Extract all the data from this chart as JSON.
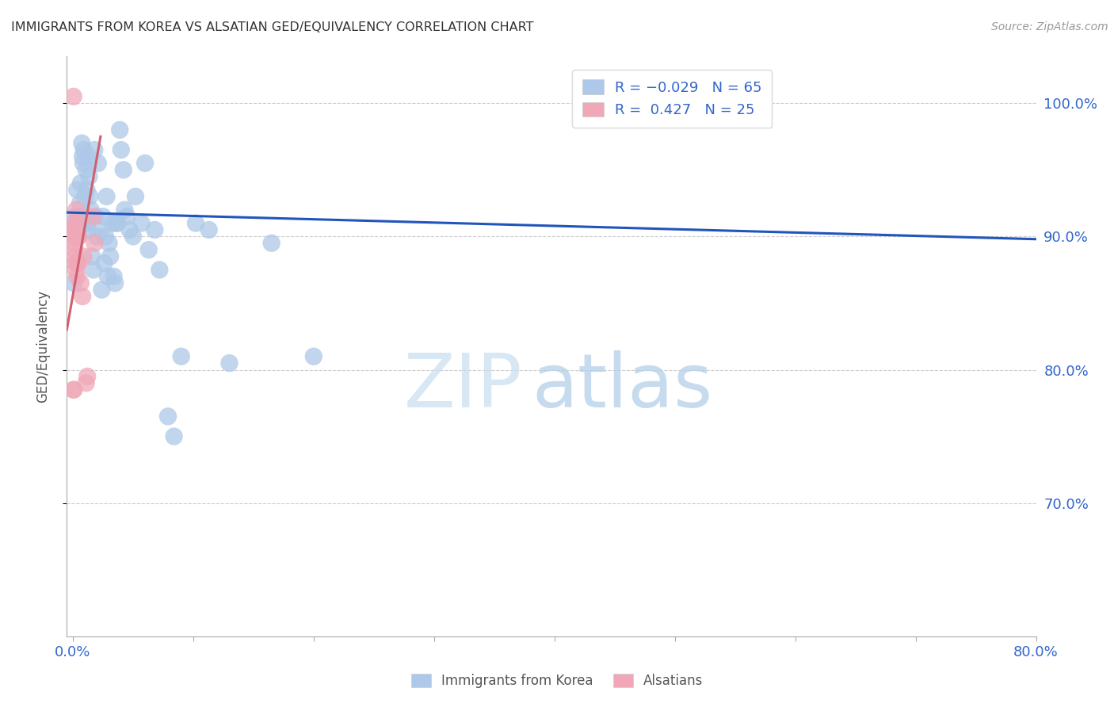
{
  "title": "IMMIGRANTS FROM KOREA VS ALSATIAN GED/EQUIVALENCY CORRELATION CHART",
  "source": "Source: ZipAtlas.com",
  "ylabel": "GED/Equivalency",
  "x_tick_values": [
    0.0,
    10.0,
    20.0,
    30.0,
    40.0,
    50.0,
    60.0,
    70.0,
    80.0
  ],
  "x_label_values": [
    0.0,
    80.0
  ],
  "y_tick_values": [
    70.0,
    80.0,
    90.0,
    100.0
  ],
  "xlim": [
    -0.5,
    80.0
  ],
  "ylim": [
    60.0,
    103.5
  ],
  "blue_color": "#adc8e8",
  "pink_color": "#f0a8b8",
  "blue_line_color": "#2255bb",
  "pink_line_color": "#d06070",
  "blue_scatter": [
    [
      0.18,
      91.5
    ],
    [
      0.22,
      91.0
    ],
    [
      0.3,
      90.5
    ],
    [
      0.35,
      93.5
    ],
    [
      0.4,
      91.0
    ],
    [
      0.45,
      90.0
    ],
    [
      0.5,
      91.5
    ],
    [
      0.6,
      92.5
    ],
    [
      0.65,
      94.0
    ],
    [
      0.75,
      97.0
    ],
    [
      0.8,
      96.0
    ],
    [
      0.85,
      95.5
    ],
    [
      0.9,
      96.5
    ],
    [
      1.0,
      93.0
    ],
    [
      1.05,
      91.0
    ],
    [
      1.1,
      95.0
    ],
    [
      1.15,
      93.5
    ],
    [
      1.2,
      91.0
    ],
    [
      1.25,
      90.5
    ],
    [
      1.3,
      96.0
    ],
    [
      1.35,
      94.5
    ],
    [
      1.4,
      93.0
    ],
    [
      1.5,
      92.0
    ],
    [
      1.6,
      88.5
    ],
    [
      1.7,
      87.5
    ],
    [
      1.8,
      96.5
    ],
    [
      1.9,
      91.5
    ],
    [
      2.0,
      90.0
    ],
    [
      2.1,
      95.5
    ],
    [
      2.3,
      90.5
    ],
    [
      2.4,
      86.0
    ],
    [
      2.5,
      91.5
    ],
    [
      2.6,
      88.0
    ],
    [
      2.7,
      90.0
    ],
    [
      2.8,
      93.0
    ],
    [
      2.9,
      87.0
    ],
    [
      3.0,
      89.5
    ],
    [
      3.1,
      88.5
    ],
    [
      3.3,
      91.0
    ],
    [
      3.4,
      87.0
    ],
    [
      3.5,
      86.5
    ],
    [
      3.6,
      91.0
    ],
    [
      3.7,
      91.0
    ],
    [
      3.9,
      98.0
    ],
    [
      4.0,
      96.5
    ],
    [
      4.2,
      95.0
    ],
    [
      4.3,
      92.0
    ],
    [
      4.5,
      91.5
    ],
    [
      4.7,
      90.5
    ],
    [
      5.0,
      90.0
    ],
    [
      5.2,
      93.0
    ],
    [
      5.7,
      91.0
    ],
    [
      6.0,
      95.5
    ],
    [
      6.3,
      89.0
    ],
    [
      6.8,
      90.5
    ],
    [
      7.2,
      87.5
    ],
    [
      7.9,
      76.5
    ],
    [
      8.4,
      75.0
    ],
    [
      9.0,
      81.0
    ],
    [
      10.2,
      91.0
    ],
    [
      11.3,
      90.5
    ],
    [
      13.0,
      80.5
    ],
    [
      16.5,
      89.5
    ],
    [
      0.08,
      86.5
    ],
    [
      20.0,
      81.0
    ]
  ],
  "pink_scatter": [
    [
      0.05,
      100.5
    ],
    [
      0.08,
      91.0
    ],
    [
      0.1,
      90.5
    ],
    [
      0.12,
      90.0
    ],
    [
      0.15,
      89.5
    ],
    [
      0.17,
      89.0
    ],
    [
      0.2,
      88.5
    ],
    [
      0.22,
      88.0
    ],
    [
      0.25,
      87.5
    ],
    [
      0.28,
      92.0
    ],
    [
      0.3,
      90.0
    ],
    [
      0.32,
      88.0
    ],
    [
      0.35,
      87.0
    ],
    [
      0.4,
      91.0
    ],
    [
      0.45,
      88.0
    ],
    [
      0.5,
      90.0
    ],
    [
      0.65,
      86.5
    ],
    [
      0.8,
      85.5
    ],
    [
      0.9,
      88.5
    ],
    [
      1.1,
      79.0
    ],
    [
      1.2,
      79.5
    ],
    [
      0.05,
      78.5
    ],
    [
      0.08,
      78.5
    ],
    [
      1.7,
      91.5
    ],
    [
      1.8,
      89.5
    ]
  ],
  "blue_line_x": [
    -0.5,
    80.0
  ],
  "blue_line_y": [
    91.8,
    89.8
  ],
  "pink_line_x": [
    -0.5,
    2.3
  ],
  "pink_line_y": [
    83.0,
    97.5
  ],
  "watermark_zip": "ZIP",
  "watermark_atlas": "atlas",
  "background_color": "#ffffff",
  "grid_color": "#cccccc",
  "title_color": "#333333",
  "axis_color": "#3366cc",
  "label_color": "#555555"
}
